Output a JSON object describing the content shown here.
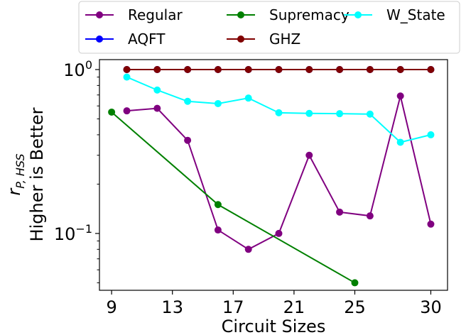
{
  "chart_data": {
    "type": "line",
    "xlabel": "Circuit Sizes",
    "ylabel_line1": "r",
    "ylabel_subscript": "P, HSS",
    "ylabel_line2": "Higher is Better",
    "yscale": "log",
    "xlim": [
      8.2,
      31.1
    ],
    "ylim": [
      0.045,
      1.15
    ],
    "xticks": [
      9,
      13,
      17,
      21,
      25,
      30
    ],
    "xtick_labels": [
      "9",
      "13",
      "17",
      "21",
      "25",
      "30"
    ],
    "yticks": [
      1,
      0.1
    ],
    "ytick_base": "10",
    "ytick_exponents": [
      "0",
      "−1"
    ],
    "legend_position": "top-outside",
    "series": [
      {
        "name": "Regular",
        "color": "#800080",
        "x": [
          10,
          12,
          14,
          16,
          18,
          20,
          22,
          24,
          26,
          28,
          30
        ],
        "y": [
          0.56,
          0.58,
          0.37,
          0.105,
          0.08,
          0.1,
          0.3,
          0.135,
          0.128,
          0.69,
          0.114
        ]
      },
      {
        "name": "Supremacy",
        "color": "#008000",
        "x": [
          9,
          16,
          25
        ],
        "y": [
          0.55,
          0.15,
          0.05
        ]
      },
      {
        "name": "W_State",
        "color": "#00ffff",
        "x": [
          10,
          12,
          14,
          16,
          18,
          20,
          22,
          24,
          26,
          28,
          30
        ],
        "y": [
          0.9,
          0.75,
          0.64,
          0.62,
          0.67,
          0.545,
          0.54,
          0.538,
          0.535,
          0.36,
          0.4
        ]
      },
      {
        "name": "AQFT",
        "color": "#0000ff",
        "x": [
          10,
          12,
          14,
          16,
          18,
          20,
          22,
          24,
          26,
          28,
          30
        ],
        "y": [
          1,
          1,
          1,
          1,
          1,
          1,
          1,
          1,
          1,
          1,
          1
        ]
      },
      {
        "name": "GHZ",
        "color": "#800000",
        "x": [
          10,
          12,
          14,
          16,
          18,
          20,
          22,
          24,
          26,
          28,
          30
        ],
        "y": [
          1,
          1,
          1,
          1,
          1,
          1,
          1,
          1,
          1,
          1,
          1
        ]
      }
    ]
  }
}
